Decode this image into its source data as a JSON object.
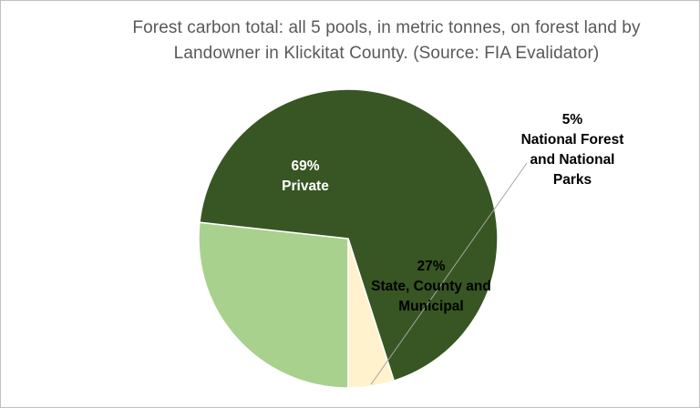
{
  "chart_data": {
    "type": "pie",
    "title": "Forest carbon total: all 5 pools, in metric tonnes, on forest land by Landowner in Klickitat County.  (Source: FIA Evalidator)",
    "title_lines": [
      "Forest carbon total: all 5 pools, in metric tonnes, on forest land by",
      "Landowner in Klickitat County.  (Source: FIA Evalidator)"
    ],
    "slices": [
      {
        "name": "State, County and Municipal",
        "label_lines": [
          "State, County and",
          "Municipal"
        ],
        "value": 27,
        "pct_label": "27%",
        "color": "#a9d18e",
        "text_color": "#000000"
      },
      {
        "name": "Private",
        "label_lines": [
          "Private"
        ],
        "value": 69,
        "pct_label": "69%",
        "color": "#375623",
        "text_color": "#ffffff"
      },
      {
        "name": "National Forest and National Parks",
        "label_lines": [
          "National Forest",
          "and National",
          "Parks"
        ],
        "value": 5,
        "pct_label": "5%",
        "color": "#fff2cc",
        "text_color": "#000000"
      }
    ],
    "legend": "none",
    "slice_border_color": "#ffffff",
    "leader_line_color": "#a6a6a6"
  }
}
